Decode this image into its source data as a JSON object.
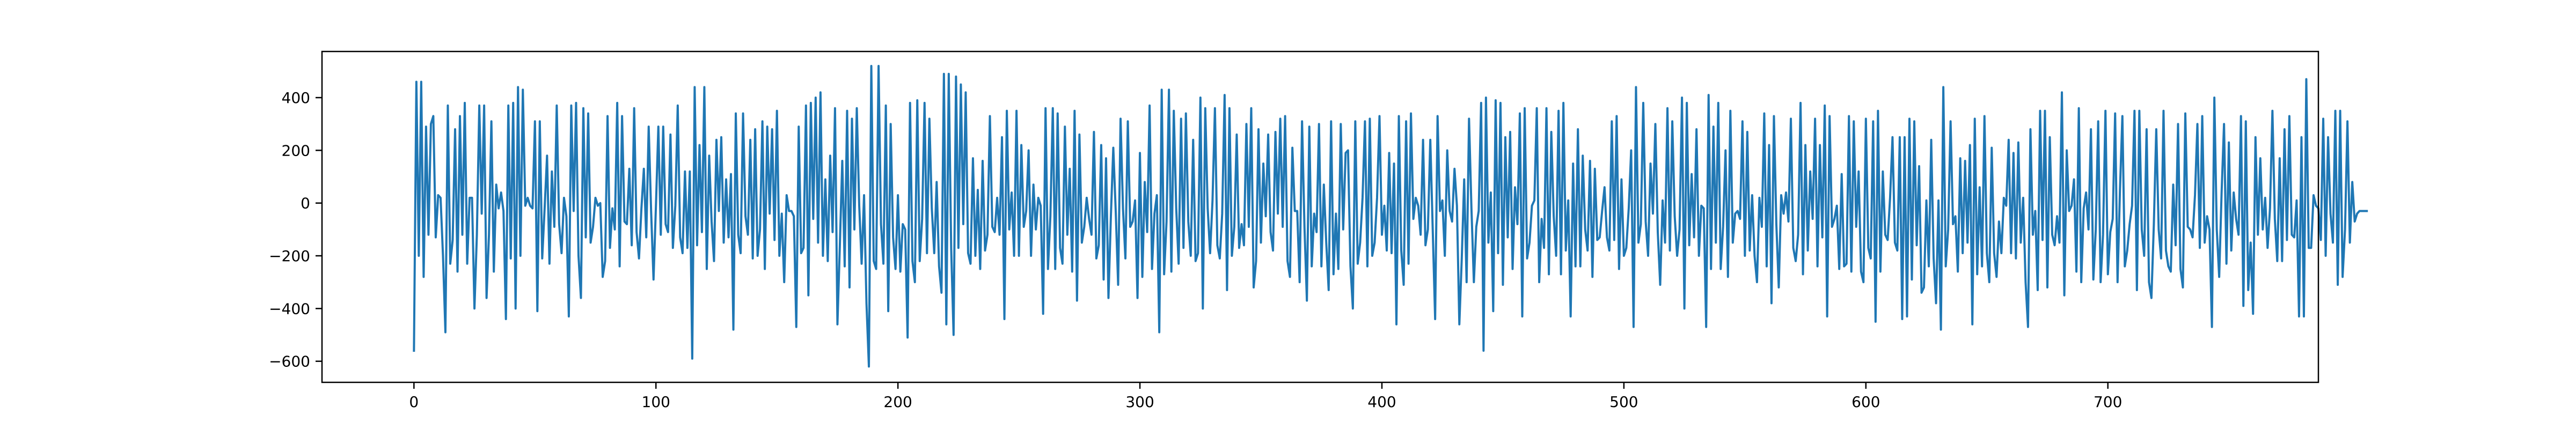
{
  "chart_data": {
    "type": "line",
    "title": "",
    "xlabel": "",
    "ylabel": "",
    "xlim": [
      -38,
      787
    ],
    "ylim": [
      -680,
      575
    ],
    "grid": false,
    "legend": "none",
    "x_ticks": [
      0,
      100,
      200,
      300,
      400,
      500,
      600,
      700
    ],
    "x_tick_labels": [
      "0",
      "100",
      "200",
      "300",
      "400",
      "500",
      "600",
      "700"
    ],
    "y_ticks": [
      -600,
      -400,
      -200,
      0,
      200,
      400
    ],
    "y_tick_labels": [
      "−600",
      "−400",
      "−200",
      "0",
      "200",
      "400"
    ],
    "colors": {
      "line": "#1f77b4",
      "axes": "#000000",
      "background": "#ffffff"
    },
    "series": [
      {
        "values": [
          -560,
          460,
          -200,
          460,
          -280,
          290,
          -120,
          300,
          330,
          -130,
          30,
          20,
          -200,
          -490,
          370,
          -230,
          -140,
          280,
          -260,
          330,
          -120,
          380,
          -230,
          20,
          20,
          -400,
          -120,
          370,
          -40,
          370,
          -360,
          -120,
          310,
          -260,
          70,
          -20,
          40,
          -30,
          -440,
          370,
          -210,
          380,
          -400,
          440,
          -200,
          430,
          -10,
          20,
          -10,
          -20,
          310,
          -410,
          310,
          -210,
          -20,
          180,
          -230,
          120,
          -90,
          370,
          -80,
          -190,
          20,
          -50,
          -430,
          370,
          -30,
          380,
          -200,
          -360,
          360,
          -130,
          340,
          -150,
          -90,
          20,
          -10,
          0,
          -280,
          -220,
          330,
          -170,
          -20,
          -100,
          380,
          -240,
          330,
          -70,
          -80,
          130,
          -160,
          360,
          -110,
          -210,
          -20,
          130,
          -130,
          290,
          -30,
          -290,
          -10,
          290,
          -120,
          290,
          -80,
          -110,
          260,
          -170,
          -10,
          370,
          -130,
          -190,
          120,
          -170,
          120,
          -590,
          440,
          -160,
          220,
          -110,
          440,
          -250,
          180,
          -70,
          -220,
          240,
          -30,
          250,
          -150,
          90,
          -130,
          110,
          -480,
          340,
          -120,
          -190,
          340,
          -50,
          -120,
          240,
          -210,
          280,
          -200,
          -100,
          310,
          -250,
          290,
          -40,
          280,
          -140,
          350,
          -200,
          -40,
          -300,
          30,
          -30,
          -30,
          -50,
          -470,
          290,
          -190,
          -170,
          370,
          -350,
          380,
          -60,
          400,
          -150,
          420,
          -200,
          90,
          -220,
          180,
          -110,
          360,
          -460,
          -160,
          160,
          -240,
          350,
          -320,
          320,
          -100,
          360,
          -10,
          -230,
          30,
          -380,
          -620,
          520,
          -220,
          -250,
          520,
          -80,
          -230,
          370,
          -410,
          300,
          -130,
          -250,
          30,
          -260,
          -80,
          -100,
          -510,
          380,
          -220,
          -300,
          390,
          -220,
          -60,
          380,
          -190,
          320,
          -20,
          -190,
          80,
          -240,
          -340,
          490,
          -460,
          490,
          -170,
          -500,
          480,
          -170,
          450,
          -80,
          420,
          -190,
          -230,
          170,
          -200,
          50,
          -250,
          160,
          -180,
          -120,
          330,
          -90,
          -110,
          20,
          -120,
          250,
          -440,
          350,
          -100,
          40,
          -200,
          350,
          -200,
          220,
          -90,
          -30,
          200,
          -200,
          70,
          -100,
          20,
          -10,
          -420,
          360,
          -250,
          -50,
          360,
          -250,
          340,
          -170,
          -230,
          290,
          -120,
          130,
          -260,
          350,
          -370,
          260,
          -150,
          -90,
          20,
          -60,
          -120,
          270,
          -210,
          -160,
          220,
          -290,
          170,
          -360,
          -50,
          210,
          -30,
          -310,
          320,
          -20,
          -210,
          310,
          -90,
          -70,
          10,
          -360,
          190,
          -280,
          80,
          -110,
          370,
          -250,
          -40,
          30,
          -490,
          430,
          -270,
          -70,
          430,
          -260,
          350,
          -20,
          -230,
          320,
          -170,
          340,
          -70,
          -200,
          240,
          -220,
          -190,
          400,
          -400,
          360,
          -20,
          -190,
          10,
          360,
          -160,
          -210,
          -40,
          410,
          -330,
          360,
          -200,
          -90,
          260,
          -170,
          -80,
          -160,
          300,
          -90,
          360,
          -320,
          -220,
          280,
          -150,
          150,
          -50,
          260,
          -110,
          -180,
          270,
          -40,
          320,
          -90,
          330,
          -220,
          -280,
          210,
          -30,
          -30,
          -300,
          310,
          -90,
          -370,
          290,
          -240,
          -40,
          -110,
          300,
          -240,
          70,
          -150,
          -330,
          310,
          -270,
          -40,
          -250,
          300,
          -100,
          190,
          200,
          -240,
          -400,
          310,
          -230,
          -150,
          20,
          310,
          -240,
          320,
          -200,
          -150,
          20,
          330,
          -120,
          -10,
          -180,
          190,
          -190,
          150,
          -460,
          330,
          -180,
          -310,
          310,
          -230,
          340,
          -60,
          20,
          -10,
          -120,
          240,
          -160,
          -100,
          240,
          -100,
          -440,
          330,
          -30,
          10,
          -200,
          200,
          -30,
          -70,
          130,
          -10,
          -460,
          -210,
          90,
          -300,
          320,
          -20,
          -300,
          -90,
          -30,
          380,
          -560,
          400,
          -150,
          40,
          -410,
          390,
          -190,
          380,
          -310,
          250,
          -130,
          270,
          -250,
          60,
          -80,
          340,
          -430,
          360,
          -210,
          -150,
          -10,
          10,
          360,
          -300,
          -60,
          -170,
          360,
          -270,
          270,
          -50,
          -200,
          350,
          -270,
          380,
          -180,
          10,
          -430,
          150,
          -240,
          280,
          -240,
          180,
          -100,
          -180,
          160,
          -280,
          130,
          -140,
          -130,
          -30,
          60,
          -130,
          -180,
          310,
          -140,
          330,
          -250,
          90,
          -200,
          -170,
          -20,
          200,
          -470,
          440,
          -150,
          -80,
          380,
          -70,
          -200,
          150,
          -40,
          300,
          -110,
          -310,
          10,
          -150,
          360,
          -180,
          310,
          -50,
          -200,
          -100,
          400,
          -400,
          380,
          -160,
          110,
          -130,
          280,
          -200,
          -10,
          -20,
          -470,
          410,
          -250,
          290,
          -150,
          380,
          -250,
          -90,
          200,
          -280,
          350,
          -150,
          -40,
          -30,
          -60,
          310,
          -200,
          270,
          -180,
          30,
          -200,
          -300,
          20,
          -90,
          340,
          -240,
          220,
          -380,
          330,
          -80,
          -320,
          30,
          -40,
          40,
          -70,
          320,
          -170,
          -220,
          -120,
          380,
          -270,
          220,
          -180,
          120,
          -60,
          320,
          -240,
          220,
          -130,
          370,
          -430,
          330,
          -90,
          -60,
          -10,
          -250,
          110,
          -240,
          -230,
          330,
          -260,
          310,
          -90,
          120,
          -260,
          -300,
          320,
          -170,
          -210,
          310,
          -450,
          350,
          -260,
          120,
          -120,
          -140,
          20,
          250,
          -150,
          -180,
          250,
          -440,
          250,
          -430,
          320,
          -290,
          310,
          -160,
          140,
          -340,
          -320,
          10,
          -240,
          240,
          -210,
          -380,
          10,
          -480,
          440,
          -240,
          -100,
          310,
          -80,
          -50,
          -260,
          170,
          -190,
          160,
          -150,
          220,
          -460,
          320,
          -270,
          60,
          -240,
          330,
          -190,
          -300,
          210,
          -190,
          -280,
          -70,
          -190,
          20,
          -10,
          240,
          -190,
          190,
          -210,
          230,
          -150,
          20,
          -300,
          -470,
          280,
          -120,
          -30,
          -330,
          350,
          -140,
          350,
          -320,
          250,
          -120,
          -160,
          -50,
          -150,
          420,
          -350,
          200,
          -30,
          -10,
          90,
          -260,
          360,
          -300,
          -20,
          40,
          -100,
          280,
          -290,
          -100,
          310,
          -300,
          -120,
          350,
          -270,
          -110,
          -60,
          340,
          -300,
          50,
          330,
          -240,
          -180,
          -80,
          -10,
          350,
          -330,
          350,
          -100,
          -200,
          280,
          -300,
          -360,
          -80,
          280,
          -100,
          -210,
          350,
          -180,
          -240,
          -260,
          70,
          -160,
          300,
          -250,
          -320,
          340,
          -90,
          -100,
          -130,
          30,
          300,
          -170,
          330,
          -150,
          -50,
          -100,
          -470,
          400,
          -100,
          -280,
          40,
          300,
          -230,
          230,
          -180,
          40,
          -60,
          -120,
          330,
          -390,
          310,
          -330,
          -150,
          -420,
          250,
          -120,
          170,
          -100,
          20,
          -170,
          -20,
          350,
          -60,
          -220,
          170,
          -220,
          280,
          -140,
          330,
          -120,
          -130,
          10,
          -430,
          250,
          -430,
          470,
          -170,
          -170,
          30,
          -10,
          -20,
          -140,
          320,
          -200,
          250,
          -40,
          -150,
          350,
          -310,
          350,
          -280,
          -100,
          310,
          -150,
          80,
          -70,
          -40,
          -30,
          -30,
          -30,
          -30
        ]
      }
    ]
  }
}
